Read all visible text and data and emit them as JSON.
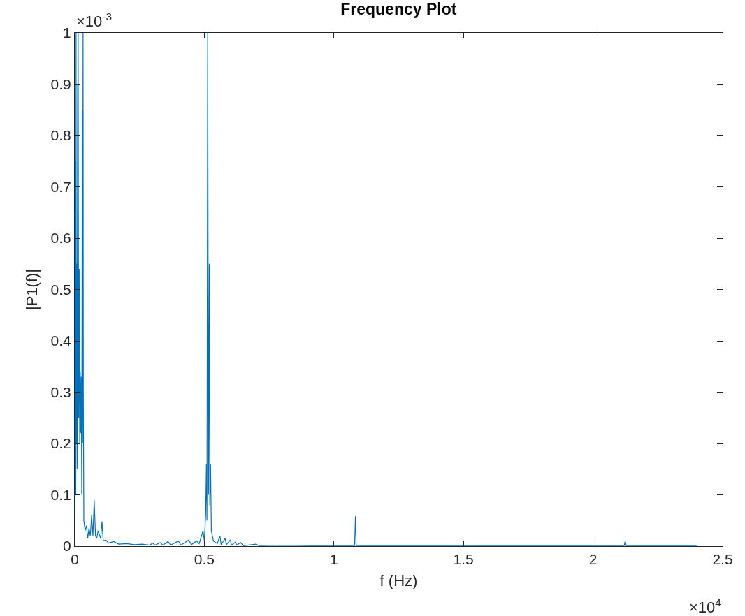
{
  "chart_data": {
    "type": "line",
    "title": "Frequency Plot",
    "xlabel": "f (Hz)",
    "ylabel": "|P1(f)|",
    "annotations": [
      "×10$^{-3}$",
      "×10$^{4}$"
    ],
    "x": [
      0,
      0.002,
      0.004,
      0.005,
      0.006,
      0.008,
      0.009,
      0.011,
      0.012,
      0.013,
      0.015,
      0.017,
      0.019,
      0.021,
      0.023,
      0.025,
      0.027,
      0.029,
      0.03,
      0.032,
      0.033,
      0.035,
      0.04,
      0.045,
      0.05,
      0.055,
      0.06,
      0.065,
      0.07,
      0.075,
      0.08,
      0.085,
      0.09,
      0.1,
      0.105,
      0.11,
      0.12,
      0.13,
      0.15,
      0.17,
      0.2,
      0.23,
      0.26,
      0.29,
      0.3,
      0.31,
      0.33,
      0.34,
      0.36,
      0.37,
      0.4,
      0.41,
      0.44,
      0.45,
      0.47,
      0.48,
      0.495,
      0.5,
      0.505,
      0.508,
      0.51,
      0.513,
      0.516,
      0.519,
      0.521,
      0.524,
      0.527,
      0.535,
      0.55,
      0.56,
      0.565,
      0.58,
      0.585,
      0.6,
      0.605,
      0.62,
      0.625,
      0.64,
      0.65,
      0.7,
      0.71,
      0.8,
      0.9,
      1.0,
      1.08,
      1.083,
      1.086,
      1.3,
      1.6,
      1.9,
      2.12,
      2.124,
      2.128,
      2.4
    ],
    "series": [
      {
        "color": "#0072bd",
        "values": [
          0.05,
          0.75,
          0.1,
          1,
          0.2,
          0.55,
          0.15,
          0.9,
          0.3,
          1,
          0.25,
          0.54,
          0.2,
          0.34,
          0.22,
          0.33,
          0.1,
          0.85,
          0.2,
          1,
          0.3,
          0.05,
          0.03,
          0.04,
          0.015,
          0.035,
          0.02,
          0.06,
          0.02,
          0.09,
          0.02,
          0.015,
          0.03,
          0.015,
          0.048,
          0.01,
          0.012,
          0.006,
          0.009,
          0.004,
          0.005,
          0.003,
          0.004,
          0.002,
          0.006,
          0.002,
          0.007,
          0.002,
          0.009,
          0.002,
          0.01,
          0.002,
          0.012,
          0.003,
          0.01,
          0.005,
          0.03,
          0.01,
          0.06,
          0.16,
          0.05,
          1,
          0.1,
          0.55,
          0.08,
          0.16,
          0.03,
          0.01,
          0.005,
          0.02,
          0.003,
          0.015,
          0.003,
          0.012,
          0.002,
          0.008,
          0.002,
          0.007,
          0.001,
          0.004,
          0.001,
          0.002,
          0.001,
          0.001,
          0.001,
          0.058,
          0.001,
          0.001,
          0.001,
          0.001,
          0.001,
          0.01,
          0.001,
          0.001
        ]
      }
    ],
    "xlim": [
      0,
      2.5
    ],
    "xticks": [
      0,
      0.5,
      1,
      1.5,
      2,
      2.5
    ],
    "ylim": [
      0,
      1
    ],
    "yticks": [
      0,
      0.1,
      0.2,
      0.3,
      0.4,
      0.5,
      0.6,
      0.7,
      0.8,
      0.9,
      1
    ],
    "grid": false,
    "marker": "none",
    "line_style": "solid"
  }
}
